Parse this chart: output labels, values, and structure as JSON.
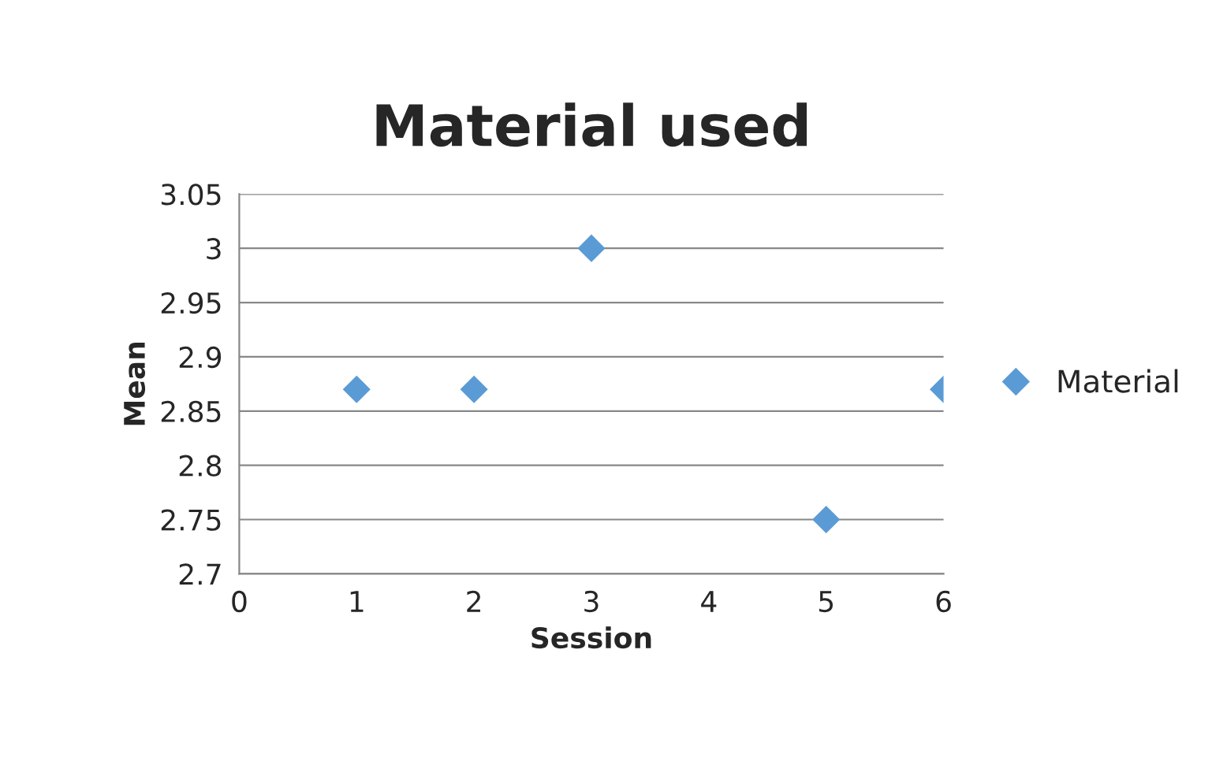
{
  "chart_data": {
    "type": "scatter",
    "title": "Material used",
    "xlabel": "Session",
    "ylabel": "Mean",
    "series": [
      {
        "name": "Material",
        "color": "#5b9bd5",
        "x": [
          1,
          2,
          3,
          5,
          6
        ],
        "values": [
          2.87,
          2.87,
          3,
          2.75,
          2.87
        ]
      }
    ],
    "xlim": [
      0,
      6
    ],
    "xticks": [
      0,
      1,
      2,
      3,
      4,
      5,
      6
    ],
    "ylim": [
      2.7,
      3.05
    ],
    "yticks": [
      2.7,
      2.75,
      2.8,
      2.85,
      2.9,
      2.95,
      3,
      3.05
    ],
    "grid": "y",
    "legend": "right",
    "marker": "diamond"
  }
}
